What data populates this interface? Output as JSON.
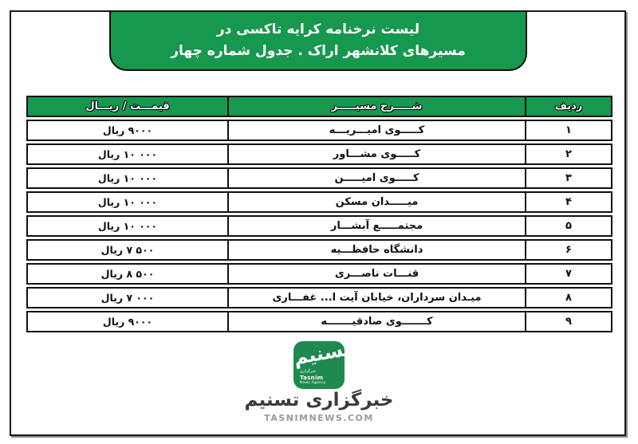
{
  "title": {
    "line1": "لیست نرخنامه کرایه تاکسی در",
    "line2": "مسیرهای کلانشهر اراک . جدول شماره چهار"
  },
  "table": {
    "columns": {
      "price": "قیمـــت / ریـــال",
      "route": "شـــــرح مسیـــــر",
      "row": "ردیف"
    },
    "rows": [
      {
        "no": "۱",
        "route": "کـــــوی امیـــریـــه",
        "price": "۹۰۰۰ ریال"
      },
      {
        "no": "۲",
        "route": "کـــــوی مشـــاور",
        "price": "۱۰ ۰۰۰ ریال"
      },
      {
        "no": "۳",
        "route": "کـــــوی امیـــــن",
        "price": "۱۰ ۰۰۰ ریال"
      },
      {
        "no": "۴",
        "route": "میـــــدان مسکن",
        "price": "۱۰ ۰۰۰ ریال"
      },
      {
        "no": "۵",
        "route": "مجتمـــــع آبشـــار",
        "price": "۱۰ ۰۰۰ ریال"
      },
      {
        "no": "۶",
        "route": "دانشگاه حافظـــیه",
        "price": "۷ ۵۰۰ ریال"
      },
      {
        "no": "۷",
        "route": "قنـــات ناصـــری",
        "price": "۸ ۵۰۰ ریال"
      },
      {
        "no": "۸",
        "route": "میـدان سرداران، خیابان آیت ا... غفـــاری",
        "price": "۷ ۰۰۰ ریال"
      },
      {
        "no": "۹",
        "route": "کـــــــوی صادقیـــــــه",
        "price": "۹۰۰۰ ریال"
      }
    ]
  },
  "footer": {
    "logo_calligraphy": "تسنیم",
    "logo_small_fa": "خبرگزاری",
    "logo_small_en1": "Tasnim",
    "logo_small_en2": "News Agency",
    "brand": "خبرگزاری تسنیم",
    "site": "TASNIMNEWS.COM"
  },
  "colors": {
    "green": "#16984e",
    "logo_green": "#1f8a50",
    "border": "#111111",
    "brand_text": "#3b3b3b",
    "site_text": "#9a9a9a"
  }
}
